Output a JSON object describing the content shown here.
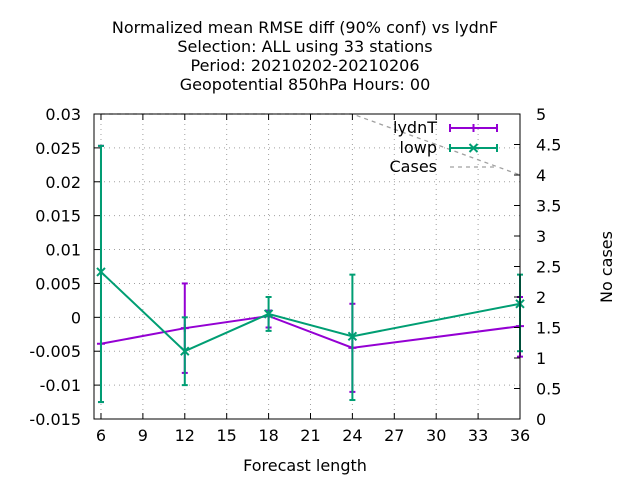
{
  "chart_data": {
    "type": "line",
    "title_lines": [
      "Normalized mean RMSE diff (90% conf) vs lydnF",
      "Selection: ALL using    33 stations",
      "Period: 20210202-20210206",
      "Geopotential 850hPa   Hours:  00"
    ],
    "xlabel": "Forecast length",
    "ylabel": "",
    "y2label": "No cases",
    "xlim": [
      5.5,
      36
    ],
    "ylim": [
      -0.015,
      0.03
    ],
    "y2lim": [
      0,
      5
    ],
    "x_ticks": [
      6,
      9,
      12,
      15,
      18,
      21,
      24,
      27,
      30,
      33,
      36
    ],
    "y_ticks": [
      -0.015,
      -0.01,
      -0.005,
      0,
      0.005,
      0.01,
      0.015,
      0.02,
      0.025,
      0.03
    ],
    "y_tick_labels": [
      "-0.015",
      "-0.01",
      "-0.005",
      "0",
      "0.005",
      "0.01",
      "0.015",
      "0.02",
      "0.025",
      "0.03"
    ],
    "y2_ticks": [
      0,
      0.5,
      1,
      1.5,
      2,
      2.5,
      3,
      3.5,
      4,
      4.5,
      5
    ],
    "y2_tick_labels": [
      "0",
      "0.5",
      "1",
      "1.5",
      "2",
      "2.5",
      "3",
      "3.5",
      "4",
      "4.5",
      "5"
    ],
    "grid": true,
    "legend_position": "top-right",
    "series": [
      {
        "name": "lydnT",
        "color": "#9400d3",
        "marker": "plus",
        "x": [
          6,
          12,
          18,
          24,
          36
        ],
        "y": [
          -0.0039,
          -0.0016,
          0.0002,
          -0.0045,
          -0.0013
        ],
        "err_low": [
          -0.0125,
          -0.0082,
          -0.0015,
          -0.011,
          -0.0058
        ],
        "err_high": [
          0.0253,
          0.005,
          0.001,
          0.002,
          0.003
        ]
      },
      {
        "name": "lowp",
        "color": "#009e73",
        "marker": "cross",
        "x": [
          6,
          12,
          18,
          24,
          36
        ],
        "y": [
          0.0067,
          -0.005,
          0.0005,
          -0.0028,
          0.002
        ],
        "err_low": [
          -0.0125,
          -0.01,
          -0.002,
          -0.0122,
          -0.005
        ],
        "err_high": [
          0.0253,
          0.0,
          0.003,
          0.0063,
          0.0063
        ]
      },
      {
        "name": "Cases",
        "color": "#a0a0a0",
        "axis": "y2",
        "dashed": true,
        "x": [
          6,
          12,
          18,
          24,
          36
        ],
        "y": [
          5,
          5,
          5,
          5,
          4
        ]
      }
    ]
  }
}
